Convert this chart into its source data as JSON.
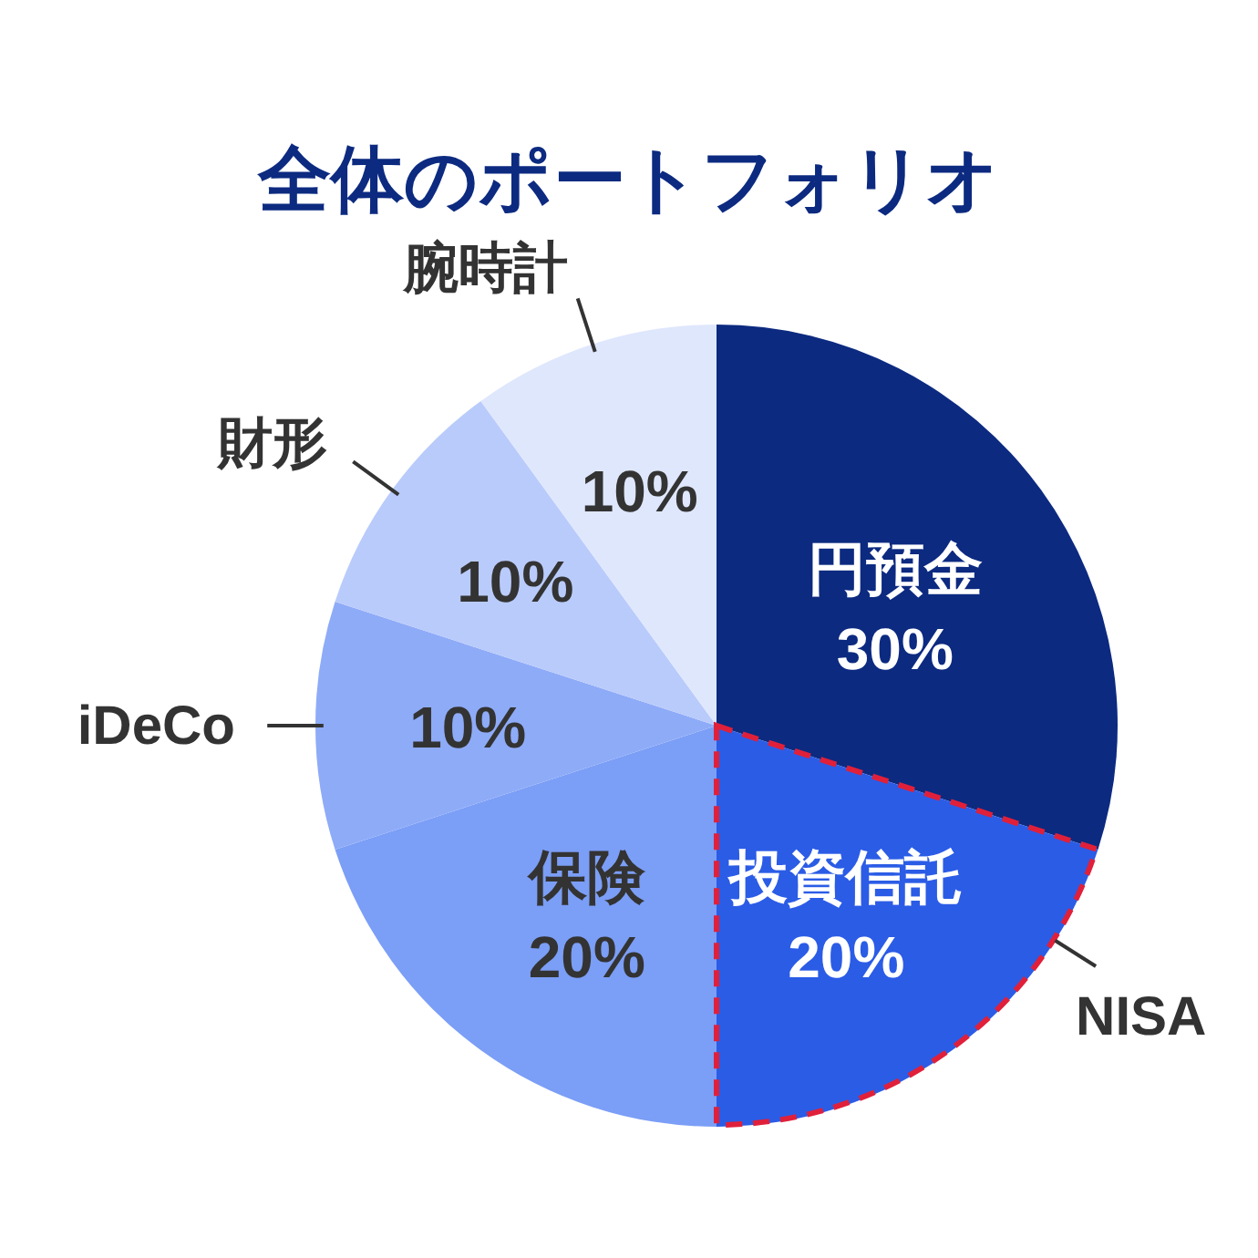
{
  "chart_data": {
    "type": "pie",
    "title": "全体のポートフォリオ",
    "categories": [
      "円預金",
      "投資信託",
      "保険",
      "iDeCo",
      "財形",
      "腕時計"
    ],
    "values": [
      30,
      20,
      20,
      10,
      10,
      10
    ],
    "colors": [
      "#0c2a80",
      "#2b5ce6",
      "#7b9ef6",
      "#8eabf8",
      "#b9cbfb",
      "#dfe7fd"
    ],
    "value_labels": [
      "30%",
      "20%",
      "20%",
      "10%",
      "10%",
      "10%"
    ],
    "annotations": [
      {
        "text": "NISA",
        "x": "投資信託"
      }
    ]
  }
}
